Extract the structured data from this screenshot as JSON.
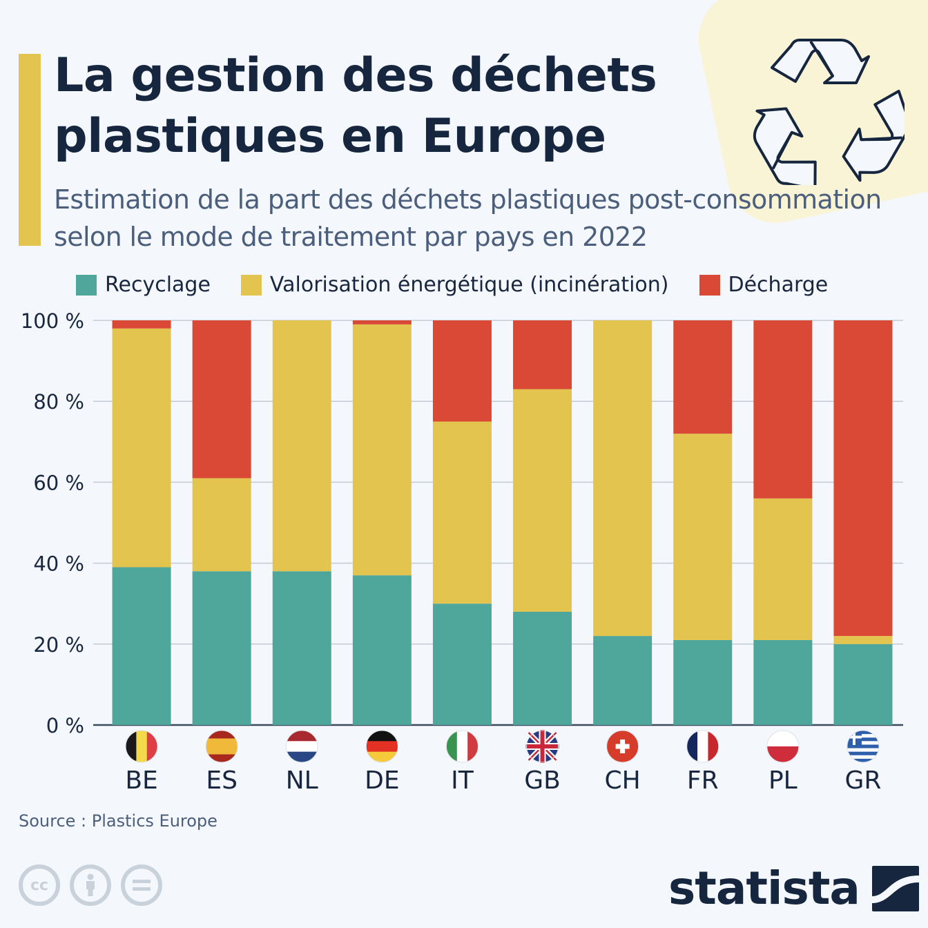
{
  "header": {
    "title": "La gestion des déchets plastiques en Europe",
    "subtitle": "Estimation de la part des déchets plastiques post-consommation selon le mode de traitement par pays en 2022",
    "icon": "recycle-icon"
  },
  "legend": [
    {
      "label": "Recyclage",
      "color": "#4fa69a"
    },
    {
      "label": "Valorisation énergétique (incinération)",
      "color": "#e3c44e"
    },
    {
      "label": "Décharge",
      "color": "#d94935"
    }
  ],
  "chart_data": {
    "type": "bar",
    "stacked": true,
    "title": "La gestion des déchets plastiques en Europe",
    "subtitle": "Estimation de la part des déchets plastiques post-consommation selon le mode de traitement par pays en 2022",
    "xlabel": "",
    "ylabel": "",
    "categories": [
      "BE",
      "ES",
      "NL",
      "DE",
      "IT",
      "GB",
      "CH",
      "FR",
      "PL",
      "GR"
    ],
    "series": [
      {
        "name": "Recyclage",
        "color": "#4fa69a",
        "values": [
          39,
          38,
          38,
          37,
          30,
          28,
          22,
          21,
          21,
          20
        ]
      },
      {
        "name": "Valorisation énergétique (incinération)",
        "color": "#e3c44e",
        "values": [
          59,
          23,
          62,
          62,
          45,
          55,
          78,
          51,
          35,
          2
        ]
      },
      {
        "name": "Décharge",
        "color": "#d94935",
        "values": [
          2,
          39,
          0,
          1,
          25,
          17,
          0,
          28,
          44,
          78
        ]
      }
    ],
    "ylim": [
      0,
      100
    ],
    "yticks": [
      0,
      20,
      40,
      60,
      80,
      100
    ],
    "ytick_labels": [
      "0 %",
      "20 %",
      "40 %",
      "60 %",
      "80 %",
      "100 %"
    ],
    "grid": true,
    "legend_position": "top"
  },
  "flags": {
    "BE": "belgium-flag-icon",
    "ES": "spain-flag-icon",
    "NL": "netherlands-flag-icon",
    "DE": "germany-flag-icon",
    "IT": "italy-flag-icon",
    "GB": "uk-flag-icon",
    "CH": "switzerland-flag-icon",
    "FR": "france-flag-icon",
    "PL": "poland-flag-icon",
    "GR": "greece-flag-icon"
  },
  "footer": {
    "source": "Source : Plastics Europe",
    "license_icons": [
      "cc-icon",
      "attribution-icon",
      "no-derivatives-icon"
    ],
    "cc_text": "cc",
    "brand": "statista"
  }
}
